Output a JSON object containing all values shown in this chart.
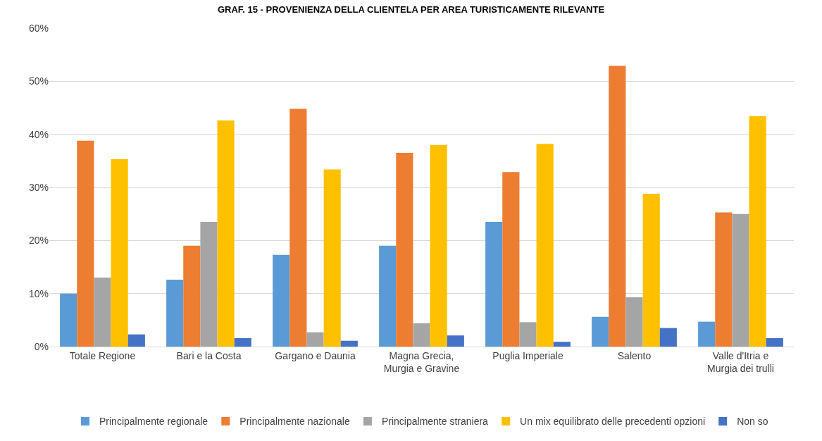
{
  "chart_data": {
    "type": "bar",
    "title": "GRAF. 15 - PROVENIENZA DELLA CLIENTELA PER AREA TURISTICAMENTE RILEVANTE",
    "categories": [
      "Totale Regione",
      "Bari e la Costa",
      "Gargano e Daunia",
      "Magna Grecia, Murgia e Gravine",
      "Puglia Imperiale",
      "Salento",
      "Valle d'Itria e Murgia dei trulli"
    ],
    "series": [
      {
        "name": "Principalmente regionale",
        "color": "#5b9bd5",
        "values": [
          10.0,
          12.6,
          17.3,
          19.0,
          23.5,
          5.6,
          4.7
        ]
      },
      {
        "name": "Principalmente nazionale",
        "color": "#ed7d31",
        "values": [
          38.8,
          19.0,
          44.8,
          36.5,
          32.9,
          52.9,
          25.3
        ]
      },
      {
        "name": "Principalmente straniera",
        "color": "#a5a5a5",
        "values": [
          13.0,
          23.5,
          2.7,
          4.4,
          4.6,
          9.3,
          25.0
        ]
      },
      {
        "name": "Un mix equilibrato delle precedenti opzioni",
        "color": "#ffc000",
        "values": [
          35.3,
          42.6,
          33.4,
          38.0,
          38.2,
          28.8,
          43.4
        ]
      },
      {
        "name": "Non so",
        "color": "#4472c4",
        "values": [
          2.3,
          1.6,
          1.1,
          2.1,
          0.9,
          3.5,
          1.6
        ]
      }
    ],
    "ylim": [
      0,
      60
    ],
    "yticks": [
      {
        "value": 0,
        "label": "0%"
      },
      {
        "value": 10,
        "label": "10%"
      },
      {
        "value": 20,
        "label": "20%"
      },
      {
        "value": 30,
        "label": "30%"
      },
      {
        "value": 40,
        "label": "40%"
      },
      {
        "value": 50,
        "label": "50%"
      },
      {
        "value": 60,
        "label": "60%"
      }
    ],
    "grid": "y",
    "legend": "bottom"
  }
}
